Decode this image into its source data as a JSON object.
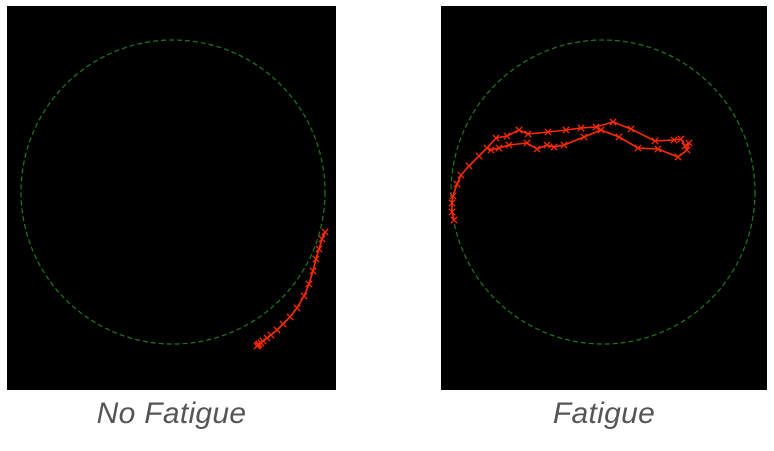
{
  "panels": [
    {
      "caption": "No Fatigue",
      "circle_color": "#1a7a1a",
      "trajectory_color": "#ff2a00",
      "marker": "x-marker",
      "trajectory_points": [
        [
          152,
          40
        ],
        [
          149,
          47
        ],
        [
          146,
          57
        ],
        [
          143,
          67
        ],
        [
          140,
          79
        ],
        [
          136,
          92
        ],
        [
          131,
          104
        ],
        [
          124,
          116
        ],
        [
          117,
          125
        ],
        [
          110,
          132
        ],
        [
          104,
          138
        ],
        [
          98,
          143
        ],
        [
          94,
          146
        ],
        [
          90,
          149
        ],
        [
          88,
          151
        ],
        [
          86,
          152
        ],
        [
          85,
          153
        ],
        [
          84,
          154
        ]
      ]
    },
    {
      "caption": "Fatigue",
      "circle_color": "#1a7a1a",
      "trajectory_color": "#ff2a00",
      "marker": "x-marker",
      "trajectory_points": [
        [
          -149,
          28
        ],
        [
          -151,
          20
        ],
        [
          -151,
          11
        ],
        [
          -150,
          4
        ],
        [
          -146,
          -8
        ],
        [
          -142,
          -17
        ],
        [
          -134,
          -26
        ],
        [
          -124,
          -36
        ],
        [
          -116,
          -44
        ],
        [
          -107,
          -54
        ],
        [
          -96,
          -56
        ],
        [
          -84,
          -62
        ],
        [
          -75,
          -58
        ],
        [
          -55,
          -60
        ],
        [
          -37,
          -62
        ],
        [
          -22,
          -64
        ],
        [
          -7,
          -65
        ],
        [
          10,
          -70
        ],
        [
          28,
          -63
        ],
        [
          52,
          -51
        ],
        [
          71,
          -52
        ],
        [
          78,
          -53
        ],
        [
          82,
          -46
        ],
        [
          86,
          -49
        ],
        [
          84,
          -42
        ],
        [
          75,
          -35
        ],
        [
          55,
          -43
        ],
        [
          35,
          -44
        ],
        [
          16,
          -55
        ],
        [
          -2,
          -62
        ],
        [
          -19,
          -55
        ],
        [
          -39,
          -47
        ],
        [
          -49,
          -45
        ],
        [
          -56,
          -47
        ],
        [
          -66,
          -43
        ],
        [
          -76,
          -49
        ],
        [
          -94,
          -47
        ],
        [
          -104,
          -44
        ],
        [
          -112,
          -42
        ]
      ]
    }
  ]
}
